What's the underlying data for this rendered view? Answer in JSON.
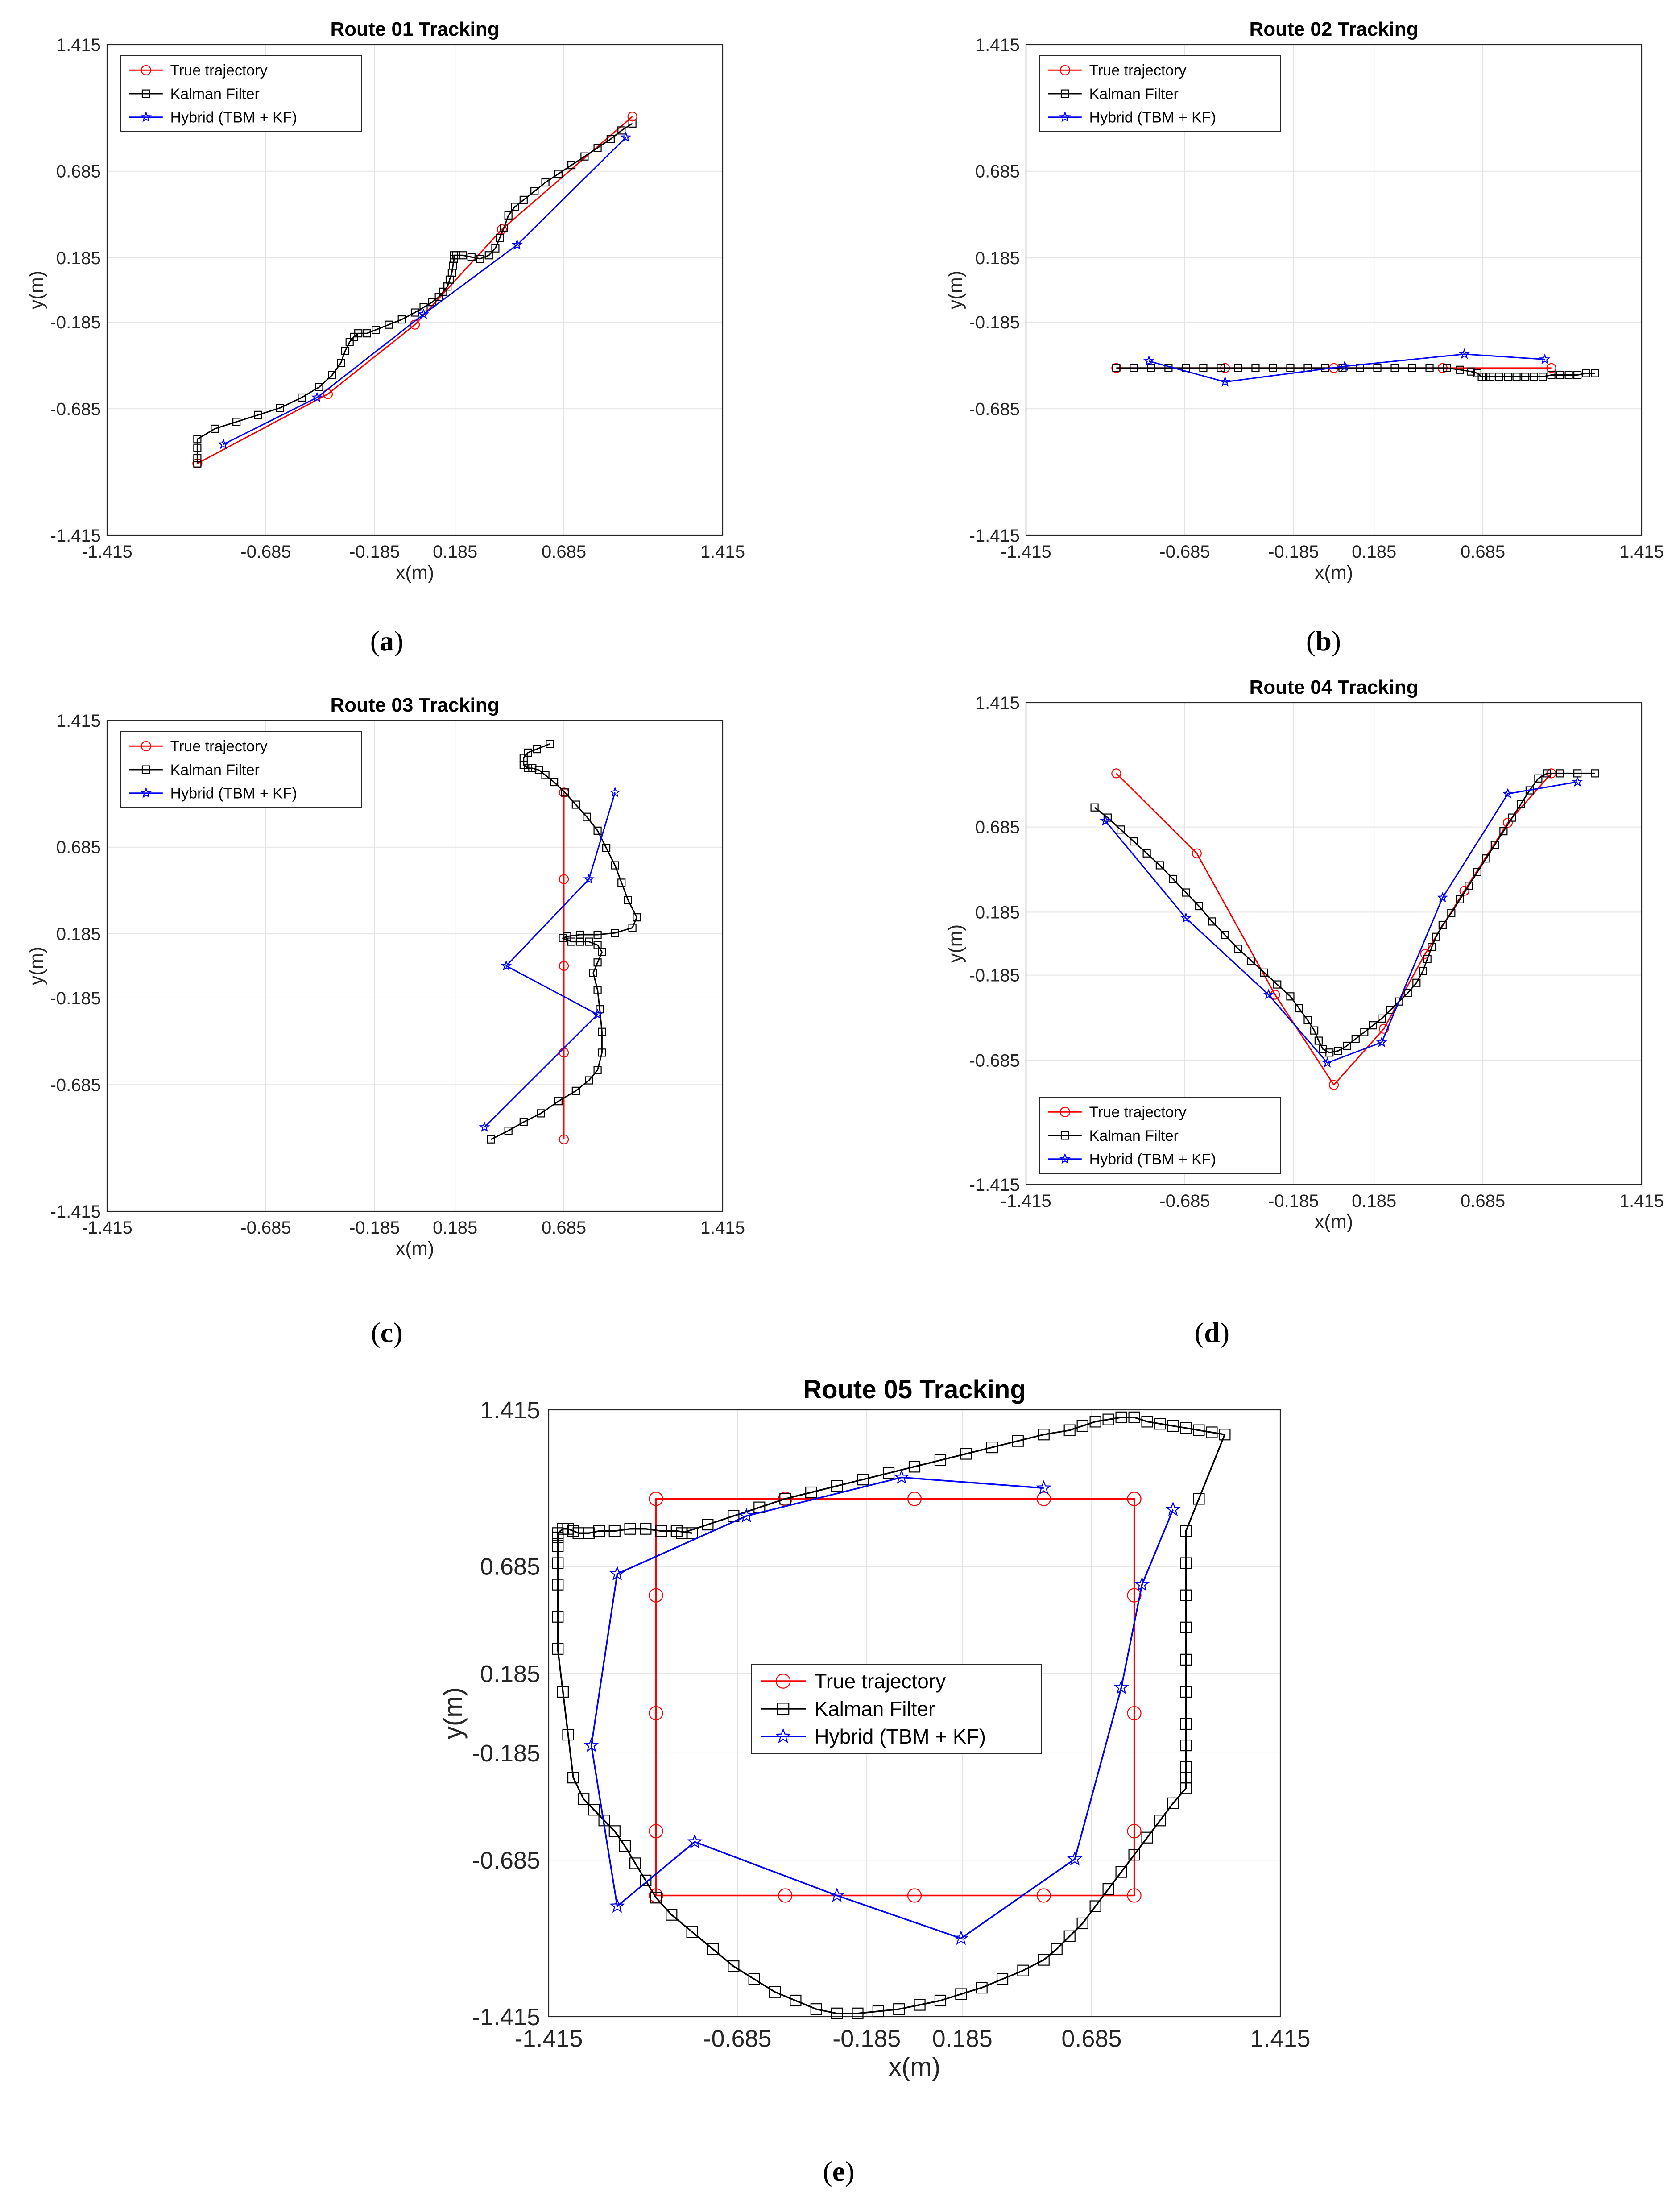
{
  "figure": {
    "legend_labels": [
      "True trajectory",
      "Kalman Filter",
      "Hybrid (TBM + KF)"
    ],
    "colors": {
      "true": "#ff0000",
      "kf": "#000000",
      "hybrid": "#0000ff",
      "grid": "#e3e3e3",
      "axis": "#262626"
    }
  },
  "chart_data": [
    {
      "panel": "a",
      "caption": "a",
      "type": "line",
      "title": "Route 01 Tracking",
      "xlabel": "x(m)",
      "ylabel": "y(m)",
      "xlim": [
        -1.415,
        1.415
      ],
      "ylim": [
        -1.415,
        1.415
      ],
      "ticks": [
        "-1.415",
        "-0.685",
        "-0.185",
        "0.185",
        "0.685",
        "1.415"
      ],
      "tick_values": [
        -1.415,
        -0.685,
        -0.185,
        0.185,
        0.685,
        1.415
      ],
      "grid": true,
      "legend_position": "top-left",
      "series": [
        {
          "name": "True trajectory",
          "key": "true",
          "marker": "circle",
          "x": [
            -1.0,
            -0.4,
            0.0,
            0.4,
            1.0
          ],
          "y": [
            -1.0,
            -0.6,
            -0.2,
            0.35,
            1.0
          ]
        },
        {
          "name": "Kalman Filter",
          "key": "kf",
          "marker": "square",
          "x": [
            -1.0,
            -1.0,
            -1.0,
            -1.0,
            -0.92,
            -0.82,
            -0.72,
            -0.62,
            -0.52,
            -0.44,
            -0.38,
            -0.34,
            -0.32,
            -0.3,
            -0.28,
            -0.26,
            -0.22,
            -0.18,
            -0.12,
            -0.06,
            0.0,
            0.04,
            0.08,
            0.11,
            0.13,
            0.15,
            0.16,
            0.17,
            0.175,
            0.18,
            0.18,
            0.19,
            0.22,
            0.26,
            0.3,
            0.34,
            0.37,
            0.39,
            0.41,
            0.43,
            0.46,
            0.5,
            0.55,
            0.6,
            0.66,
            0.72,
            0.78,
            0.84,
            0.9,
            0.95,
            1.0
          ],
          "y": [
            -1.0,
            -0.97,
            -0.91,
            -0.86,
            -0.8,
            -0.76,
            -0.72,
            -0.68,
            -0.62,
            -0.56,
            -0.49,
            -0.42,
            -0.35,
            -0.3,
            -0.27,
            -0.25,
            -0.25,
            -0.23,
            -0.2,
            -0.17,
            -0.13,
            -0.1,
            -0.07,
            -0.04,
            -0.01,
            0.02,
            0.06,
            0.1,
            0.14,
            0.18,
            0.2,
            0.2,
            0.2,
            0.19,
            0.18,
            0.2,
            0.24,
            0.3,
            0.36,
            0.43,
            0.48,
            0.52,
            0.57,
            0.62,
            0.67,
            0.72,
            0.77,
            0.82,
            0.87,
            0.92,
            0.96
          ]
        },
        {
          "name": "Hybrid (TBM + KF)",
          "key": "hybrid",
          "marker": "star",
          "x": [
            -0.88,
            -0.45,
            0.04,
            0.47,
            0.97
          ],
          "y": [
            -0.89,
            -0.62,
            -0.14,
            0.26,
            0.88
          ]
        }
      ]
    },
    {
      "panel": "b",
      "caption": "b",
      "type": "line",
      "title": "Route 02 Tracking",
      "xlabel": "x(m)",
      "ylabel": "y(m)",
      "xlim": [
        -1.415,
        1.415
      ],
      "ylim": [
        -1.415,
        1.415
      ],
      "ticks": [
        "-1.415",
        "-0.685",
        "-0.185",
        "0.185",
        "0.685",
        "1.415"
      ],
      "tick_values": [
        -1.415,
        -0.685,
        -0.185,
        0.185,
        0.685,
        1.415
      ],
      "grid": true,
      "legend_position": "top-left",
      "series": [
        {
          "name": "True trajectory",
          "key": "true",
          "marker": "circle",
          "x": [
            -1.0,
            -0.5,
            0.0,
            0.5,
            1.0
          ],
          "y": [
            -0.45,
            -0.45,
            -0.45,
            -0.45,
            -0.45
          ]
        },
        {
          "name": "Kalman Filter",
          "key": "kf",
          "marker": "square",
          "x": [
            -1.0,
            -0.92,
            -0.84,
            -0.76,
            -0.68,
            -0.6,
            -0.52,
            -0.44,
            -0.36,
            -0.28,
            -0.2,
            -0.12,
            -0.04,
            0.04,
            0.12,
            0.2,
            0.28,
            0.36,
            0.44,
            0.52,
            0.58,
            0.63,
            0.66,
            0.68,
            0.7,
            0.72,
            0.76,
            0.8,
            0.84,
            0.88,
            0.92,
            0.96,
            1.0,
            1.04,
            1.08,
            1.12,
            1.16,
            1.2
          ],
          "y": [
            -0.45,
            -0.45,
            -0.45,
            -0.45,
            -0.45,
            -0.45,
            -0.45,
            -0.45,
            -0.45,
            -0.45,
            -0.45,
            -0.45,
            -0.45,
            -0.45,
            -0.45,
            -0.45,
            -0.45,
            -0.45,
            -0.45,
            -0.45,
            -0.46,
            -0.47,
            -0.48,
            -0.5,
            -0.5,
            -0.5,
            -0.5,
            -0.5,
            -0.5,
            -0.5,
            -0.5,
            -0.5,
            -0.49,
            -0.49,
            -0.49,
            -0.49,
            -0.48,
            -0.48
          ]
        },
        {
          "name": "Hybrid (TBM + KF)",
          "key": "hybrid",
          "marker": "star",
          "x": [
            -0.85,
            -0.5,
            0.05,
            0.6,
            0.97
          ],
          "y": [
            -0.41,
            -0.53,
            -0.44,
            -0.37,
            -0.4
          ]
        }
      ]
    },
    {
      "panel": "c",
      "caption": "c",
      "type": "line",
      "title": "Route 03 Tracking",
      "xlabel": "x(m)",
      "ylabel": "y(m)",
      "xlim": [
        -1.415,
        1.415
      ],
      "ylim": [
        -1.415,
        1.415
      ],
      "ticks": [
        "-1.415",
        "-0.685",
        "-0.185",
        "0.185",
        "0.685",
        "1.415"
      ],
      "tick_values": [
        -1.415,
        -0.685,
        -0.185,
        0.185,
        0.685,
        1.415
      ],
      "grid": true,
      "legend_position": "top-left",
      "series": [
        {
          "name": "True trajectory",
          "key": "true",
          "marker": "circle",
          "x": [
            0.685,
            0.685,
            0.685,
            0.685,
            0.685
          ],
          "y": [
            -1.0,
            -0.5,
            0.0,
            0.5,
            1.0
          ]
        },
        {
          "name": "Kalman Filter",
          "key": "kf",
          "marker": "square",
          "x": [
            0.35,
            0.43,
            0.5,
            0.58,
            0.66,
            0.74,
            0.8,
            0.84,
            0.86,
            0.86,
            0.85,
            0.84,
            0.82,
            0.84,
            0.86,
            0.84,
            0.8,
            0.76,
            0.72,
            0.68,
            0.7,
            0.76,
            0.84,
            0.92,
            1.0,
            1.02,
            0.98,
            0.95,
            0.92,
            0.88,
            0.84,
            0.79,
            0.74,
            0.69,
            0.64,
            0.6,
            0.57,
            0.54,
            0.52,
            0.5,
            0.5,
            0.52,
            0.56,
            0.62
          ],
          "y": [
            -1.0,
            -0.95,
            -0.9,
            -0.85,
            -0.78,
            -0.72,
            -0.66,
            -0.6,
            -0.5,
            -0.38,
            -0.25,
            -0.14,
            -0.04,
            0.02,
            0.08,
            0.12,
            0.14,
            0.14,
            0.14,
            0.16,
            0.17,
            0.18,
            0.18,
            0.19,
            0.22,
            0.28,
            0.38,
            0.48,
            0.58,
            0.68,
            0.78,
            0.86,
            0.93,
            1.0,
            1.06,
            1.1,
            1.13,
            1.14,
            1.14,
            1.16,
            1.2,
            1.23,
            1.25,
            1.28
          ]
        },
        {
          "name": "Hybrid (TBM + KF)",
          "key": "hybrid",
          "marker": "star",
          "x": [
            0.32,
            0.84,
            0.42,
            0.8,
            0.92
          ],
          "y": [
            -0.93,
            -0.28,
            0.0,
            0.5,
            1.0
          ]
        }
      ]
    },
    {
      "panel": "d",
      "caption": "d",
      "type": "line",
      "title": "Route 04 Tracking",
      "xlabel": "x(m)",
      "ylabel": "y(m)",
      "xlim": [
        -1.415,
        1.415
      ],
      "ylim": [
        -1.415,
        1.415
      ],
      "ticks": [
        "-1.415",
        "-0.685",
        "-0.185",
        "0.185",
        "0.685",
        "1.415"
      ],
      "tick_values": [
        -1.415,
        -0.685,
        -0.185,
        0.185,
        0.685,
        1.415
      ],
      "grid": true,
      "legend_position": "bottom-left",
      "series": [
        {
          "name": "True trajectory",
          "key": "true",
          "marker": "circle",
          "x": [
            -1.0,
            -0.63,
            -0.27,
            0.0,
            0.23,
            0.42,
            0.6,
            0.8,
            1.0
          ],
          "y": [
            1.0,
            0.53,
            -0.3,
            -0.83,
            -0.5,
            -0.06,
            0.31,
            0.71,
            1.0
          ]
        },
        {
          "name": "Kalman Filter",
          "key": "kf",
          "marker": "square",
          "x": [
            -1.1,
            -1.04,
            -0.98,
            -0.92,
            -0.86,
            -0.8,
            -0.74,
            -0.68,
            -0.62,
            -0.56,
            -0.5,
            -0.44,
            -0.38,
            -0.32,
            -0.26,
            -0.2,
            -0.16,
            -0.12,
            -0.09,
            -0.07,
            -0.05,
            -0.02,
            0.02,
            0.06,
            0.1,
            0.14,
            0.18,
            0.22,
            0.26,
            0.3,
            0.34,
            0.38,
            0.41,
            0.43,
            0.45,
            0.47,
            0.5,
            0.54,
            0.58,
            0.62,
            0.66,
            0.7,
            0.74,
            0.78,
            0.82,
            0.86,
            0.9,
            0.94,
            0.98,
            1.04,
            1.12,
            1.2
          ],
          "y": [
            0.8,
            0.74,
            0.67,
            0.6,
            0.53,
            0.46,
            0.38,
            0.3,
            0.22,
            0.13,
            0.05,
            -0.03,
            -0.1,
            -0.17,
            -0.24,
            -0.31,
            -0.38,
            -0.45,
            -0.51,
            -0.57,
            -0.62,
            -0.64,
            -0.63,
            -0.6,
            -0.56,
            -0.52,
            -0.48,
            -0.44,
            -0.39,
            -0.34,
            -0.29,
            -0.23,
            -0.16,
            -0.09,
            -0.02,
            0.04,
            0.11,
            0.18,
            0.26,
            0.34,
            0.42,
            0.5,
            0.58,
            0.66,
            0.74,
            0.82,
            0.9,
            0.97,
            1.0,
            1.0,
            1.0,
            1.0
          ]
        },
        {
          "name": "Hybrid (TBM + KF)",
          "key": "hybrid",
          "marker": "star",
          "x": [
            -1.05,
            -0.68,
            -0.3,
            -0.03,
            0.22,
            0.5,
            0.8,
            1.12
          ],
          "y": [
            0.72,
            0.15,
            -0.3,
            -0.7,
            -0.58,
            0.27,
            0.88,
            0.95
          ]
        }
      ]
    },
    {
      "panel": "e",
      "caption": "e",
      "type": "line",
      "title": "Route 05 Tracking",
      "xlabel": "x(m)",
      "ylabel": "y(m)",
      "xlim": [
        -1.415,
        1.415
      ],
      "ylim": [
        -1.415,
        1.415
      ],
      "ticks": [
        "-1.415",
        "-0.685",
        "-0.185",
        "0.185",
        "0.685",
        "1.415"
      ],
      "tick_values": [
        -1.415,
        -0.685,
        -0.185,
        0.185,
        0.685,
        1.415
      ],
      "grid": true,
      "legend_position": "center",
      "series": [
        {
          "name": "True trajectory",
          "key": "true",
          "marker": "circle",
          "x": [
            0.85,
            0.85,
            0.85,
            0.85,
            0.85,
            0.5,
            0.0,
            -0.5,
            -1.0,
            -1.0,
            -1.0,
            -1.0,
            -1.0,
            -0.5,
            0.0,
            0.5,
            0.85
          ],
          "y": [
            -0.85,
            -0.55,
            0.0,
            0.55,
            1.0,
            -0.85,
            -0.85,
            -0.85,
            -0.85,
            -0.55,
            0.0,
            0.55,
            1.0,
            1.0,
            1.0,
            1.0,
            1.0
          ],
          "path": [
            [
              -1.0,
              -0.85
            ],
            [
              -1.0,
              1.0
            ],
            [
              0.85,
              1.0
            ],
            [
              0.85,
              -0.85
            ],
            [
              -1.0,
              -0.85
            ]
          ]
        },
        {
          "name": "Kalman Filter",
          "key": "kf",
          "marker": "square",
          "x": [
            -0.9,
            -0.8,
            -0.7,
            -0.6,
            -0.5,
            -0.4,
            -0.3,
            -0.2,
            -0.1,
            0.0,
            0.1,
            0.2,
            0.3,
            0.4,
            0.5,
            0.6,
            0.65,
            0.7,
            0.75,
            0.8,
            0.85,
            0.9,
            0.95,
            1.0,
            1.05,
            1.1,
            1.15,
            1.2,
            1.1,
            1.05,
            1.05,
            1.05,
            1.05,
            1.05,
            1.05,
            1.05,
            1.05,
            1.05,
            1.05,
            1.05,
            1.0,
            0.95,
            0.9,
            0.85,
            0.8,
            0.75,
            0.7,
            0.65,
            0.6,
            0.55,
            0.5,
            0.42,
            0.34,
            0.26,
            0.18,
            0.1,
            0.02,
            -0.06,
            -0.14,
            -0.22,
            -0.3,
            -0.38,
            -0.46,
            -0.54,
            -0.62,
            -0.7,
            -0.78,
            -0.86,
            -0.94,
            -1.0,
            -1.04,
            -1.08,
            -1.12,
            -1.16,
            -1.2,
            -1.24,
            -1.28,
            -1.32,
            -1.34,
            -1.36,
            -1.38,
            -1.38,
            -1.38,
            -1.38,
            -1.38,
            -1.38,
            -1.38,
            -1.36,
            -1.34,
            -1.32,
            -1.3,
            -1.26,
            -1.22,
            -1.16,
            -1.1,
            -1.04,
            -0.98,
            -0.92,
            -0.86
          ],
          "y": [
            0.84,
            0.88,
            0.92,
            0.96,
            1.0,
            1.03,
            1.06,
            1.09,
            1.12,
            1.15,
            1.18,
            1.21,
            1.24,
            1.27,
            1.3,
            1.32,
            1.34,
            1.36,
            1.37,
            1.38,
            1.38,
            1.36,
            1.35,
            1.34,
            1.33,
            1.32,
            1.31,
            1.3,
            1.0,
            0.85,
            0.7,
            0.55,
            0.4,
            0.25,
            0.1,
            -0.05,
            -0.15,
            -0.25,
            -0.3,
            -0.35,
            -0.42,
            -0.5,
            -0.58,
            -0.66,
            -0.74,
            -0.82,
            -0.9,
            -0.98,
            -1.04,
            -1.1,
            -1.15,
            -1.2,
            -1.24,
            -1.28,
            -1.31,
            -1.34,
            -1.36,
            -1.38,
            -1.39,
            -1.4,
            -1.4,
            -1.38,
            -1.34,
            -1.3,
            -1.24,
            -1.18,
            -1.1,
            -1.02,
            -0.94,
            -0.86,
            -0.78,
            -0.7,
            -0.62,
            -0.55,
            -0.5,
            -0.45,
            -0.4,
            -0.3,
            -0.1,
            0.1,
            0.3,
            0.45,
            0.6,
            0.7,
            0.78,
            0.82,
            0.84,
            0.86,
            0.86,
            0.85,
            0.84,
            0.84,
            0.85,
            0.85,
            0.86,
            0.86,
            0.85,
            0.85,
            0.84
          ]
        },
        {
          "name": "Hybrid (TBM + KF)",
          "key": "hybrid",
          "marker": "star",
          "x": [
            0.5,
            -0.05,
            -0.65,
            -1.15,
            -1.25,
            -1.15,
            -0.85,
            -0.3,
            0.18,
            0.62,
            0.8,
            0.88,
            1.0
          ],
          "y": [
            1.05,
            1.1,
            0.92,
            0.65,
            -0.15,
            -0.9,
            -0.6,
            -0.85,
            -1.05,
            -0.68,
            0.12,
            0.6,
            0.95
          ]
        }
      ]
    }
  ]
}
